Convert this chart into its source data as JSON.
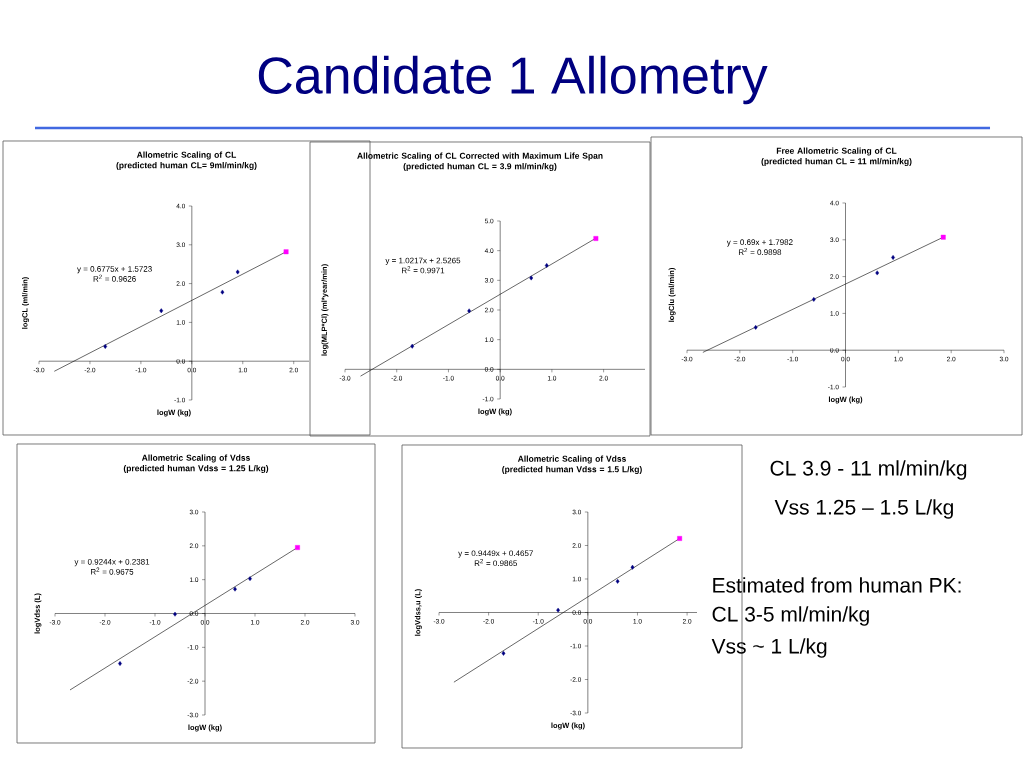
{
  "chart_data": [
    {
      "type": "scatter",
      "title": "Allometric Scaling of CL",
      "subtitle": "(predicted human CL= 9ml/min/kg)",
      "xlabel": "logW (kg)",
      "ylabel": "logCL (ml/min)",
      "xlim": [
        -3,
        2.3
      ],
      "ylim": [
        -1,
        4
      ],
      "xticks": [
        {
          "value": -3,
          "label": "-3.0"
        },
        {
          "value": -2,
          "label": "-2.0"
        },
        {
          "value": -1,
          "label": "-1.0"
        },
        {
          "value": 0,
          "label": "0.0"
        },
        {
          "value": 1,
          "label": "1.0"
        },
        {
          "value": 2,
          "label": "2.0"
        }
      ],
      "yticks": [
        {
          "value": -1,
          "label": "-1.0"
        },
        {
          "value": 0,
          "label": "0.0"
        },
        {
          "value": 1,
          "label": "1.0"
        },
        {
          "value": 2,
          "label": "2.0"
        },
        {
          "value": 3,
          "label": "3.0"
        },
        {
          "value": 4,
          "label": "4.0"
        }
      ],
      "annotations": [
        "y = 0.6775x + 1.5723",
        "R$^{2}$ = 0.9626"
      ],
      "series": [
        {
          "type": "scatter",
          "marker": "diamond",
          "color": "#000080",
          "x": [
            -1.7,
            -0.6,
            0.6,
            0.9
          ],
          "values": [
            0.38,
            1.3,
            1.78,
            2.3
          ]
        },
        {
          "type": "scatter",
          "marker": "square",
          "color": "#ff00ff",
          "x": [
            1.85
          ],
          "values": [
            2.82
          ]
        },
        {
          "type": "line",
          "color": "#000000",
          "x": [
            -2.7,
            1.85
          ],
          "values": [
            -0.26,
            2.82
          ]
        }
      ]
    },
    {
      "type": "scatter",
      "title": "Allometric Scaling of CL Corrected with Maximum Life Span",
      "subtitle": "(predicted human CL = 3.9 ml/min/kg)",
      "xlabel": "logW (kg)",
      "ylabel": "log(MLP*Cl) (ml*year/min)",
      "xlim": [
        -3,
        2.8
      ],
      "ylim": [
        -1,
        5
      ],
      "xticks": [
        {
          "value": -3,
          "label": "-3.0"
        },
        {
          "value": -2,
          "label": "-2.0"
        },
        {
          "value": -1,
          "label": "-1.0"
        },
        {
          "value": 0,
          "label": "0.0"
        },
        {
          "value": 1,
          "label": "1.0"
        },
        {
          "value": 2,
          "label": "2.0"
        }
      ],
      "yticks": [
        {
          "value": -1,
          "label": "-1.0"
        },
        {
          "value": 0,
          "label": "0.0"
        },
        {
          "value": 1,
          "label": "1.0"
        },
        {
          "value": 2,
          "label": "2.0"
        },
        {
          "value": 3,
          "label": "3.0"
        },
        {
          "value": 4,
          "label": "4.0"
        },
        {
          "value": 5,
          "label": "5.0"
        }
      ],
      "annotations": [
        "y = 1.0217x + 2.5265",
        "R$^{2}$ = 0.9971"
      ],
      "series": [
        {
          "type": "scatter",
          "marker": "diamond",
          "color": "#000080",
          "x": [
            -1.7,
            -0.6,
            0.6,
            0.9
          ],
          "values": [
            0.78,
            1.97,
            3.08,
            3.5
          ]
        },
        {
          "type": "scatter",
          "marker": "square",
          "color": "#ff00ff",
          "x": [
            1.85
          ],
          "values": [
            4.41
          ]
        },
        {
          "type": "line",
          "color": "#000000",
          "x": [
            -2.7,
            1.85
          ],
          "values": [
            -0.23,
            4.42
          ]
        }
      ]
    },
    {
      "type": "scatter",
      "title": "Free Allometric Scaling of CL",
      "subtitle": "(predicted human CL = 11 ml/min/kg)",
      "xlabel": "logW (kg)",
      "ylabel": "logClu (ml/min)",
      "xlim": [
        -3,
        3
      ],
      "ylim": [
        -1,
        4
      ],
      "xticks": [
        {
          "value": -3,
          "label": "-3.0"
        },
        {
          "value": -2,
          "label": "-2.0"
        },
        {
          "value": -1,
          "label": "-1.0"
        },
        {
          "value": 0,
          "label": "0.0"
        },
        {
          "value": 1,
          "label": "1.0"
        },
        {
          "value": 2,
          "label": "2.0"
        },
        {
          "value": 3,
          "label": "3.0"
        }
      ],
      "yticks": [
        {
          "value": -1,
          "label": "-1.0"
        },
        {
          "value": 0,
          "label": "0.0"
        },
        {
          "value": 1,
          "label": "1.0"
        },
        {
          "value": 2,
          "label": "2.0"
        },
        {
          "value": 3,
          "label": "3.0"
        },
        {
          "value": 4,
          "label": "4.0"
        }
      ],
      "annotations": [
        "y = 0.69x + 1.7982",
        "R$^{2}$ = 0.9898"
      ],
      "series": [
        {
          "type": "scatter",
          "marker": "diamond",
          "color": "#000080",
          "x": [
            -1.7,
            -0.6,
            0.6,
            0.9
          ],
          "values": [
            0.62,
            1.38,
            2.1,
            2.52
          ]
        },
        {
          "type": "scatter",
          "marker": "square",
          "color": "#ff00ff",
          "x": [
            1.85
          ],
          "values": [
            3.07
          ]
        },
        {
          "type": "line",
          "color": "#000000",
          "x": [
            -2.7,
            1.85
          ],
          "values": [
            -0.06,
            3.07
          ]
        }
      ]
    },
    {
      "type": "scatter",
      "title": "Allometric Scaling of Vdss",
      "subtitle": "(predicted human Vdss = 1.25 L/kg)",
      "xlabel": "logW (kg)",
      "ylabel": "logVdss (L)",
      "xlim": [
        -3,
        3
      ],
      "ylim": [
        -3,
        3
      ],
      "xticks": [
        {
          "value": -3,
          "label": "-3.0"
        },
        {
          "value": -2,
          "label": "-2.0"
        },
        {
          "value": -1,
          "label": "-1.0"
        },
        {
          "value": 0,
          "label": "0.0"
        },
        {
          "value": 1,
          "label": "1.0"
        },
        {
          "value": 2,
          "label": "2.0"
        },
        {
          "value": 3,
          "label": "3.0"
        }
      ],
      "yticks": [
        {
          "value": -3,
          "label": "-3.0"
        },
        {
          "value": -2,
          "label": "-2.0"
        },
        {
          "value": -1,
          "label": "-1.0"
        },
        {
          "value": 0,
          "label": "0.0"
        },
        {
          "value": 1,
          "label": "1.0"
        },
        {
          "value": 2,
          "label": "2.0"
        },
        {
          "value": 3,
          "label": "3.0"
        }
      ],
      "annotations": [
        "y = 0.9244x + 0.2381",
        "R$^{2}$ = 0.9675"
      ],
      "series": [
        {
          "type": "scatter",
          "marker": "diamond",
          "color": "#000080",
          "x": [
            -1.7,
            -0.6,
            0.6,
            0.9
          ],
          "values": [
            -1.48,
            -0.02,
            0.72,
            1.03
          ]
        },
        {
          "type": "scatter",
          "marker": "square",
          "color": "#ff00ff",
          "x": [
            1.85
          ],
          "values": [
            1.95
          ]
        },
        {
          "type": "line",
          "color": "#000000",
          "x": [
            -2.7,
            1.85
          ],
          "values": [
            -2.26,
            1.95
          ]
        }
      ]
    },
    {
      "type": "scatter",
      "title": "Allometric Scaling of Vdss",
      "subtitle": "(predicted human Vdss = 1.5 L/kg)",
      "xlabel": "logW (kg)",
      "ylabel": "logVdss,u (L)",
      "xlim": [
        -3,
        2.2
      ],
      "ylim": [
        -3,
        3
      ],
      "xticks": [
        {
          "value": -3,
          "label": "-3.0"
        },
        {
          "value": -2,
          "label": "-2.0"
        },
        {
          "value": -1,
          "label": "-1.0"
        },
        {
          "value": 0,
          "label": "0.0"
        },
        {
          "value": 1,
          "label": "1.0"
        },
        {
          "value": 2,
          "label": "2.0"
        }
      ],
      "yticks": [
        {
          "value": -3,
          "label": "-3.0"
        },
        {
          "value": -2,
          "label": "-2.0"
        },
        {
          "value": -1,
          "label": "-1.0"
        },
        {
          "value": 0,
          "label": "0.0"
        },
        {
          "value": 1,
          "label": "1.0"
        },
        {
          "value": 2,
          "label": "2.0"
        },
        {
          "value": 3,
          "label": "3.0"
        }
      ],
      "annotations": [
        "y = 0.9449x + 0.4657",
        "R$^{2}$ = 0.9865"
      ],
      "series": [
        {
          "type": "scatter",
          "marker": "diamond",
          "color": "#000080",
          "x": [
            -1.7,
            -0.6,
            0.6,
            0.9
          ],
          "values": [
            -1.22,
            0.07,
            0.93,
            1.35
          ]
        },
        {
          "type": "scatter",
          "marker": "square",
          "color": "#ff00ff",
          "x": [
            1.85
          ],
          "values": [
            2.21
          ]
        },
        {
          "type": "line",
          "color": "#000000",
          "x": [
            -2.7,
            1.85
          ],
          "values": [
            -2.08,
            2.21
          ]
        }
      ]
    },
    {
      "type": "other",
      "title": "Candidate 1 Allometry",
      "annotations": [
        "CL 3.9 - 11 ml/min/kg",
        "Vss 1.25 – 1.5 L/kg",
        "Estimated from human PK:",
        "CL 3-5 ml/min/kg",
        "Vss ~ 1 L/kg"
      ]
    }
  ]
}
